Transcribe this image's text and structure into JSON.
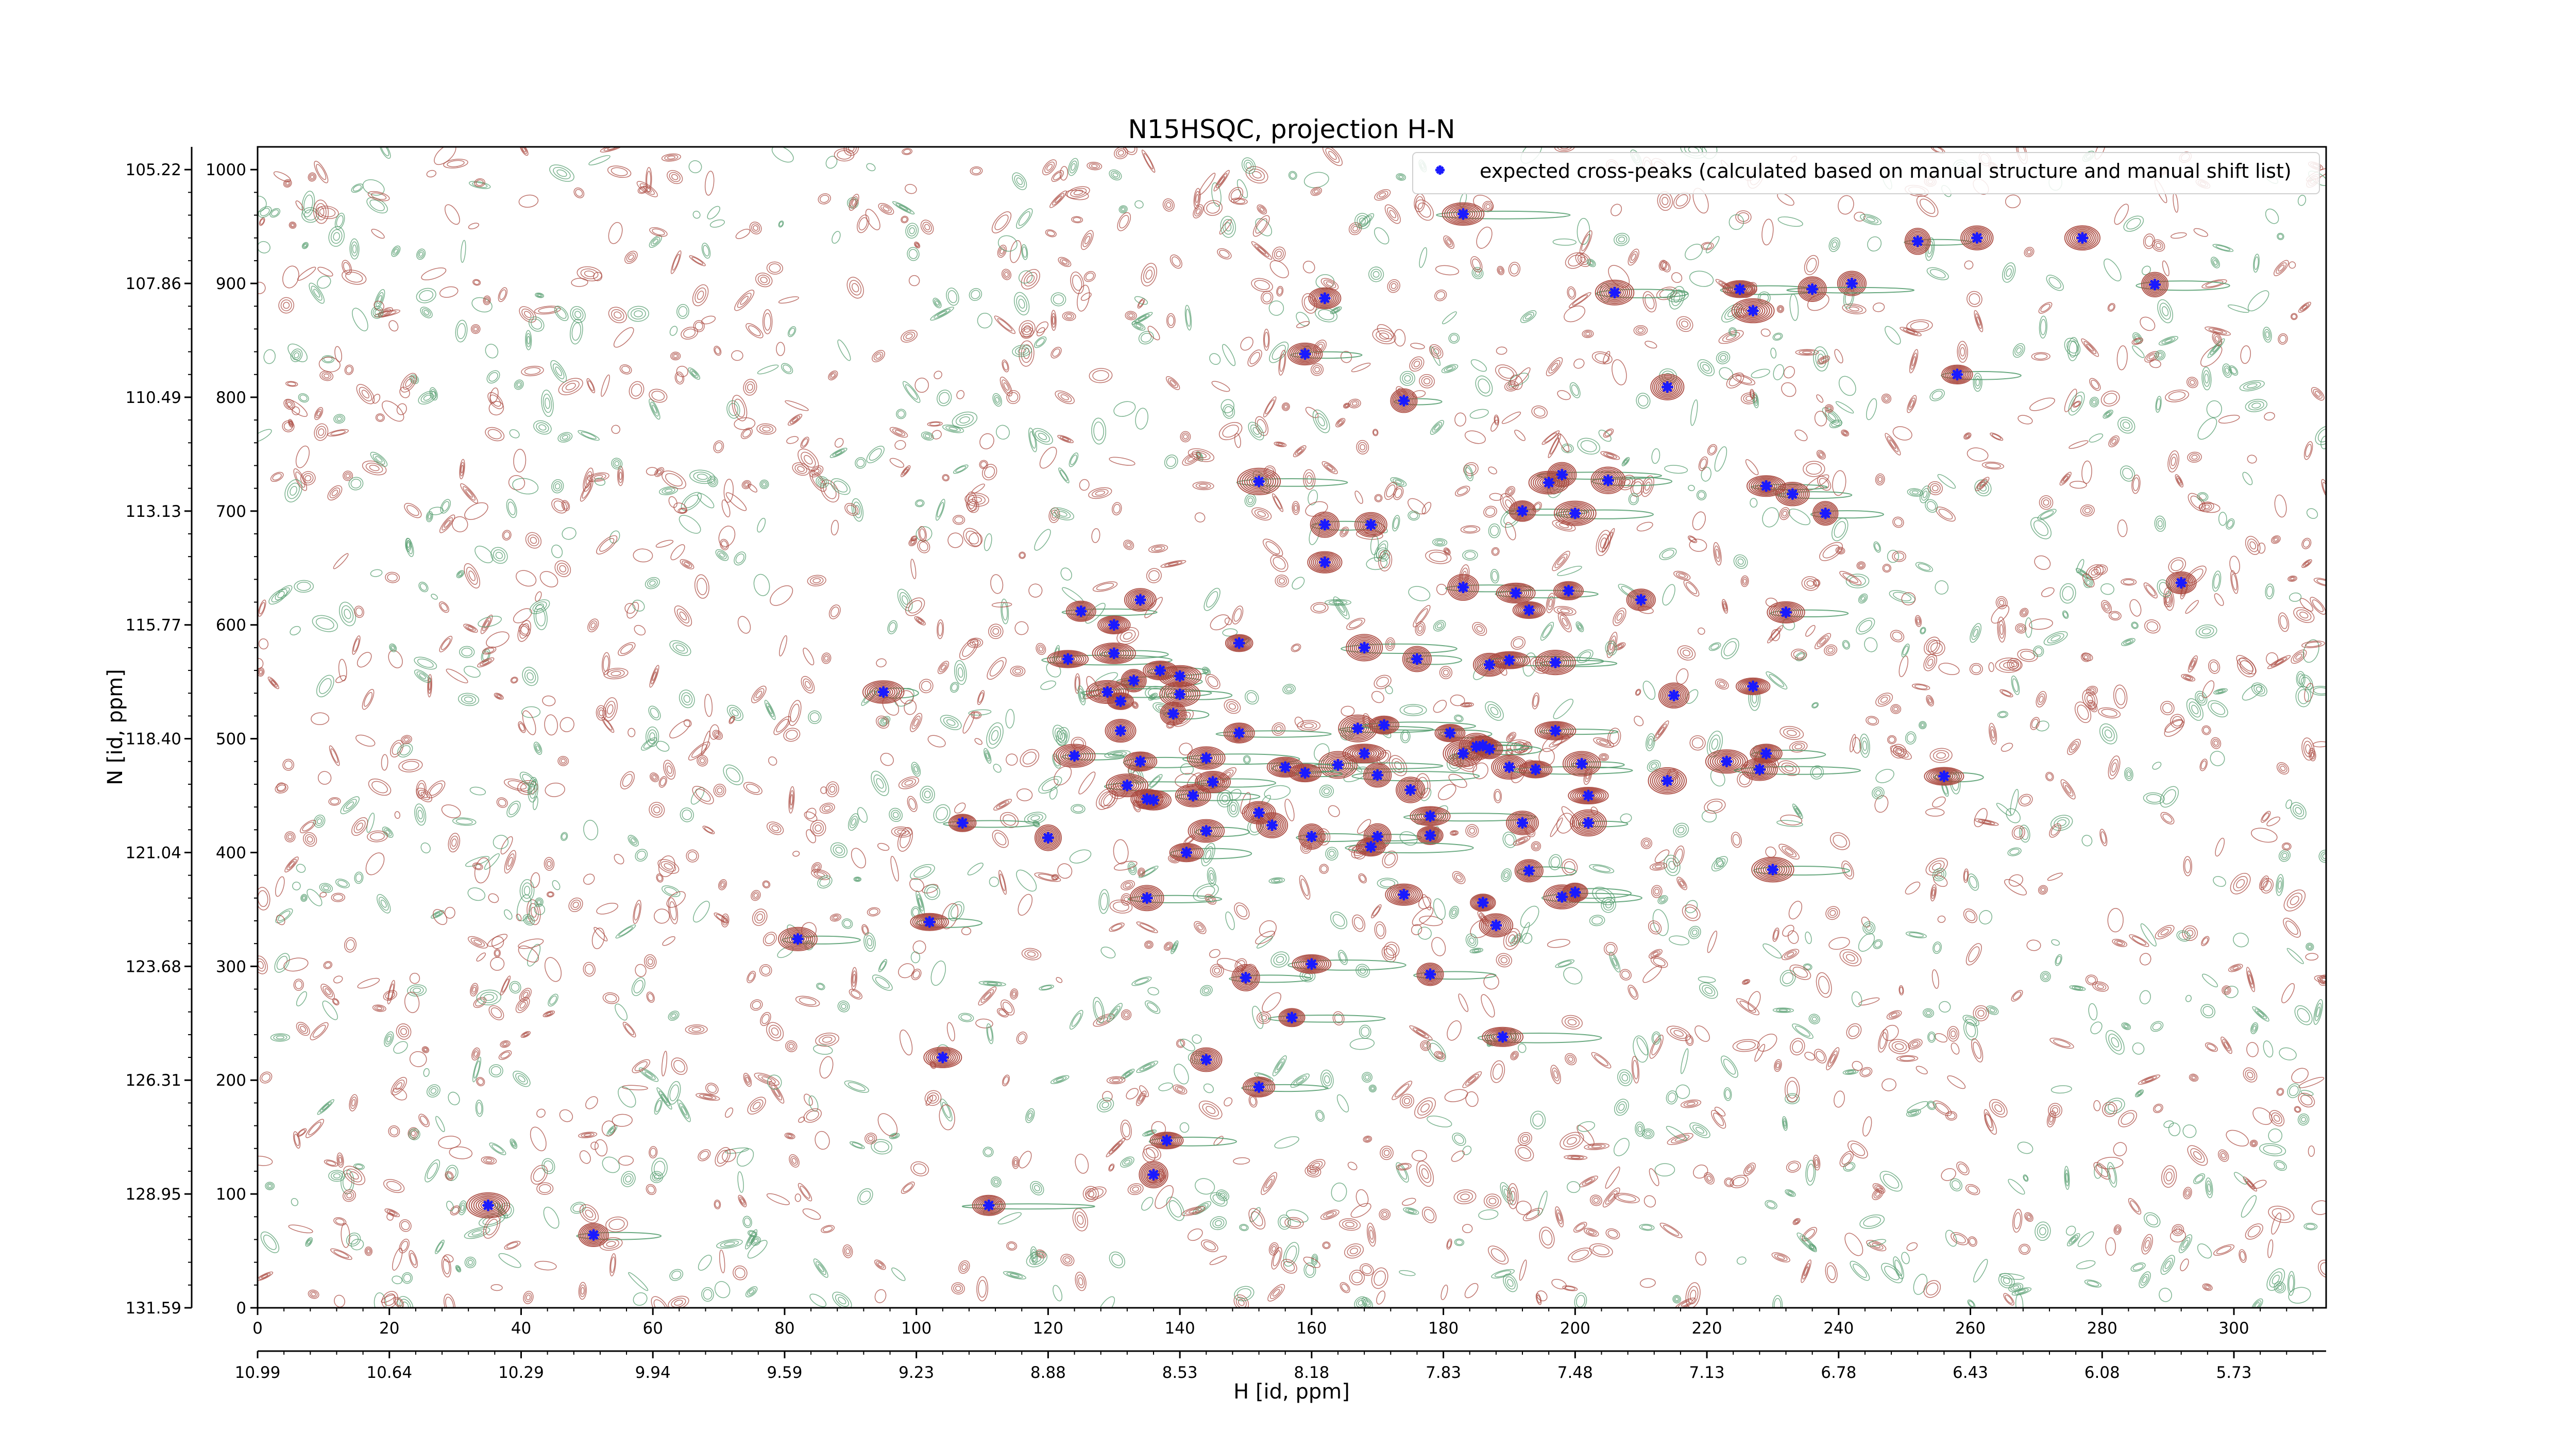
{
  "chart_data": {
    "type": "scatter",
    "title": "N15HSQC, projection H-N",
    "xlabel": "H [id, ppm]",
    "ylabel": "N [id, ppm]",
    "xlim": [
      0,
      314
    ],
    "ylim": [
      0,
      1020
    ],
    "x_index_ticks": [
      "0",
      "20",
      "40",
      "60",
      "80",
      "100",
      "120",
      "140",
      "160",
      "180",
      "200",
      "220",
      "240",
      "260",
      "280",
      "300"
    ],
    "x_ppm_ticks": [
      "10.99",
      "10.64",
      "10.29",
      "9.94",
      "9.59",
      "9.23",
      "8.88",
      "8.53",
      "8.18",
      "7.83",
      "7.48",
      "7.13",
      "6.78",
      "6.43",
      "6.08",
      "5.73"
    ],
    "y_index_ticks": [
      "0",
      "100",
      "200",
      "300",
      "400",
      "500",
      "600",
      "700",
      "800",
      "900",
      "1000"
    ],
    "y_ppm_ticks": [
      "131.59",
      "128.95",
      "126.31",
      "123.68",
      "121.04",
      "118.40",
      "115.77",
      "113.13",
      "110.49",
      "107.86",
      "105.22"
    ],
    "legend": {
      "position": "top-right",
      "label": "expected cross-peaks (calculated based on manual structure and manual shift list)"
    },
    "colors": {
      "marker": "#1a1aff",
      "positive_contour": "#a8463c",
      "negative_contour": "#4f9a6a"
    },
    "series": [
      {
        "name": "expected cross-peaks (calculated based on manual structure and manual shift list)",
        "points": [
          [
            183,
            961
          ],
          [
            252,
            937
          ],
          [
            261,
            940
          ],
          [
            277,
            940
          ],
          [
            288,
            899
          ],
          [
            242,
            900
          ],
          [
            225,
            895
          ],
          [
            236,
            895
          ],
          [
            227,
            876
          ],
          [
            206,
            892
          ],
          [
            162,
            887
          ],
          [
            159,
            838
          ],
          [
            174,
            797
          ],
          [
            214,
            809
          ],
          [
            258,
            820
          ],
          [
            152,
            726
          ],
          [
            229,
            722
          ],
          [
            233,
            715
          ],
          [
            238,
            698
          ],
          [
            198,
            732
          ],
          [
            196,
            725
          ],
          [
            205,
            727
          ],
          [
            192,
            700
          ],
          [
            200,
            698
          ],
          [
            162,
            688
          ],
          [
            169,
            688
          ],
          [
            162,
            655
          ],
          [
            183,
            633
          ],
          [
            191,
            628
          ],
          [
            199,
            630
          ],
          [
            210,
            622
          ],
          [
            193,
            613
          ],
          [
            232,
            611
          ],
          [
            292,
            637
          ],
          [
            125,
            612
          ],
          [
            130,
            600
          ],
          [
            134,
            622
          ],
          [
            123,
            570
          ],
          [
            130,
            575
          ],
          [
            133,
            551
          ],
          [
            137,
            560
          ],
          [
            140,
            555
          ],
          [
            149,
            584
          ],
          [
            168,
            580
          ],
          [
            176,
            570
          ],
          [
            187,
            565
          ],
          [
            190,
            569
          ],
          [
            197,
            567
          ],
          [
            95,
            541
          ],
          [
            129,
            541
          ],
          [
            131,
            533
          ],
          [
            140,
            539
          ],
          [
            139,
            522
          ],
          [
            131,
            507
          ],
          [
            167,
            509
          ],
          [
            171,
            512
          ],
          [
            149,
            505
          ],
          [
            181,
            505
          ],
          [
            185,
            493
          ],
          [
            186,
            494
          ],
          [
            187,
            491
          ],
          [
            197,
            507
          ],
          [
            215,
            538
          ],
          [
            227,
            546
          ],
          [
            124,
            485
          ],
          [
            134,
            480
          ],
          [
            144,
            483
          ],
          [
            164,
            477
          ],
          [
            168,
            487
          ],
          [
            183,
            487
          ],
          [
            229,
            487
          ],
          [
            223,
            480
          ],
          [
            228,
            473
          ],
          [
            190,
            475
          ],
          [
            194,
            473
          ],
          [
            201,
            478
          ],
          [
            170,
            468
          ],
          [
            175,
            455
          ],
          [
            132,
            459
          ],
          [
            135,
            447
          ],
          [
            136,
            446
          ],
          [
            142,
            450
          ],
          [
            145,
            462
          ],
          [
            156,
            475
          ],
          [
            159,
            470
          ],
          [
            214,
            463
          ],
          [
            256,
            467
          ],
          [
            202,
            450
          ],
          [
            152,
            435
          ],
          [
            178,
            432
          ],
          [
            107,
            426
          ],
          [
            120,
            413
          ],
          [
            144,
            419
          ],
          [
            154,
            424
          ],
          [
            160,
            414
          ],
          [
            170,
            414
          ],
          [
            178,
            415
          ],
          [
            192,
            426
          ],
          [
            202,
            426
          ],
          [
            141,
            400
          ],
          [
            169,
            405
          ],
          [
            230,
            385
          ],
          [
            193,
            384
          ],
          [
            135,
            360
          ],
          [
            174,
            363
          ],
          [
            186,
            356
          ],
          [
            198,
            361
          ],
          [
            200,
            365
          ],
          [
            102,
            339
          ],
          [
            188,
            336
          ],
          [
            82,
            324
          ],
          [
            160,
            302
          ],
          [
            150,
            290
          ],
          [
            178,
            293
          ],
          [
            157,
            255
          ],
          [
            189,
            238
          ],
          [
            144,
            218
          ],
          [
            152,
            194
          ],
          [
            104,
            220
          ],
          [
            138,
            147
          ],
          [
            136,
            117
          ],
          [
            35,
            90
          ],
          [
            111,
            90
          ],
          [
            51,
            64
          ]
        ]
      }
    ]
  }
}
